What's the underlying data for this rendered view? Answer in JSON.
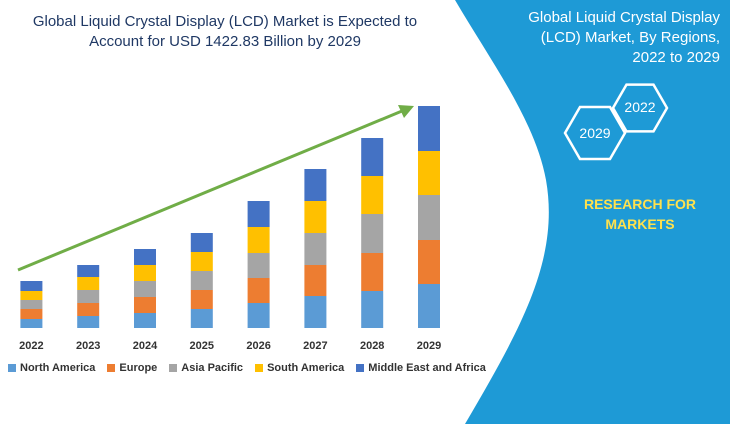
{
  "chart_data": {
    "type": "stacked-bar",
    "title": "Global Liquid Crystal Display (LCD) Market is Expected to Account for USD 1422.83 Billion by 2029",
    "categories": [
      "2022",
      "2023",
      "2024",
      "2025",
      "2026",
      "2027",
      "2028",
      "2029"
    ],
    "series": [
      {
        "name": "North America",
        "color": "#5b9bd5",
        "values": [
          9,
          12,
          15,
          19,
          25,
          32,
          37,
          44
        ]
      },
      {
        "name": "Europe",
        "color": "#ed7d31",
        "values": [
          10,
          13,
          16,
          19,
          25,
          31,
          38,
          44
        ]
      },
      {
        "name": "Asia Pacific",
        "color": "#a5a5a5",
        "values": [
          9,
          13,
          16,
          19,
          25,
          32,
          39,
          45
        ]
      },
      {
        "name": "South America",
        "color": "#ffc000",
        "values": [
          9,
          13,
          16,
          19,
          26,
          32,
          38,
          44
        ]
      },
      {
        "name": "Middle East and Africa",
        "color": "#4472c4",
        "values": [
          10,
          12,
          16,
          19,
          26,
          32,
          38,
          45
        ]
      }
    ]
  },
  "panel": {
    "title": "Global Liquid Crystal Display (LCD) Market, By Regions, 2022 to 2029",
    "badges": [
      "2022",
      "2029"
    ],
    "brand": "RESEARCH FOR MARKETS"
  }
}
